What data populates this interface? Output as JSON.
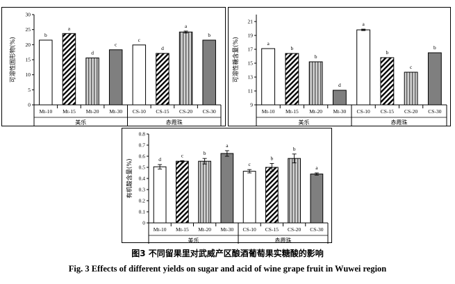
{
  "caption": {
    "cn": "图3  不同留果里对武威产区酿酒葡萄果实糖酸的影响",
    "en": "Fig. 3 Effects of different yields on sugar and acid of wine grape fruit in Wuwei region"
  },
  "chart_data": [
    {
      "type": "bar",
      "ylabel": "可溶性固形物(%)",
      "ylim": [
        0,
        30
      ],
      "yticks": [
        0,
        5,
        10,
        15,
        20,
        25,
        30
      ],
      "categories": [
        "Mt-10",
        "Mt-15",
        "Mt-20",
        "Mt-30",
        "CS-10",
        "CS-15",
        "CS-20",
        "CS-30"
      ],
      "values": [
        21.5,
        23.7,
        15.6,
        18.3,
        19.9,
        17.1,
        24.2,
        21.5
      ],
      "errors": [
        0,
        0,
        0,
        0,
        0,
        0,
        0.3,
        0
      ],
      "letters": [
        "b",
        "a",
        "d",
        "c",
        "c",
        "d",
        "a",
        "b"
      ],
      "groups": [
        {
          "label": "美乐",
          "count": 4
        },
        {
          "label": "赤霞珠",
          "count": 4
        }
      ]
    },
    {
      "type": "bar",
      "ylabel": "可溶性糖含量(%)",
      "ylim": [
        9,
        22
      ],
      "yticks": [
        9,
        11,
        13,
        15,
        17,
        19,
        21
      ],
      "categories": [
        "Mt-10",
        "Mt-15",
        "Mt-20",
        "Mt-30",
        "CS-10",
        "CS-15",
        "CS-20",
        "CS-30"
      ],
      "values": [
        17.1,
        16.4,
        15.2,
        11.1,
        19.8,
        15.8,
        13.7,
        16.5
      ],
      "errors": [
        0,
        0,
        0,
        0,
        0.1,
        0,
        0,
        0
      ],
      "letters": [
        "a",
        "b",
        "b",
        "d",
        "a",
        "b",
        "c",
        "b"
      ],
      "groups": [
        {
          "label": "美乐",
          "count": 4
        },
        {
          "label": "赤霞珠",
          "count": 4
        }
      ]
    },
    {
      "type": "bar",
      "ylabel": "有机酸含量(%)",
      "ylim": [
        0,
        0.8
      ],
      "yticks": [
        0,
        0.1,
        0.2,
        0.3,
        0.4,
        0.5,
        0.6,
        0.7,
        0.8
      ],
      "categories": [
        "Mt-10",
        "Mt-15",
        "Mt-20",
        "Mt-30",
        "CS-10",
        "CS-15",
        "CS-20",
        "CS-30"
      ],
      "values": [
        0.505,
        0.555,
        0.555,
        0.625,
        0.465,
        0.5,
        0.58,
        0.44
      ],
      "errors": [
        0.02,
        0.005,
        0.025,
        0.025,
        0.015,
        0.035,
        0.04,
        0.01
      ],
      "letters": [
        "d",
        "c",
        "b",
        "a",
        "c",
        "b",
        "b",
        "a"
      ],
      "groups": [
        {
          "label": "美乐",
          "count": 4
        },
        {
          "label": "赤霞珠",
          "count": 4
        }
      ]
    }
  ],
  "colors": {
    "white_fill": "#ffffff",
    "gray_fill": "#d0d0d0",
    "dark_fill": "#7f7f7f",
    "stroke": "#000000"
  },
  "patterns": [
    "plain",
    "hatched",
    "vertical-stripes",
    "dark"
  ]
}
